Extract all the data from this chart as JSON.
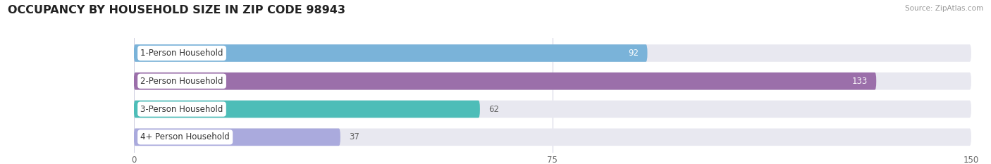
{
  "categories": [
    "1-Person Household",
    "2-Person Household",
    "3-Person Household",
    "4+ Person Household"
  ],
  "values": [
    92,
    133,
    62,
    37
  ],
  "bar_colors": [
    "#7ab3d9",
    "#9b6faa",
    "#4dbdb8",
    "#aaaadd"
  ],
  "bar_bg_color": "#e8e8f0",
  "fig_bg_color": "#ffffff",
  "title": "OCCUPANCY BY HOUSEHOLD SIZE IN ZIP CODE 98943",
  "source": "Source: ZipAtlas.com",
  "xlim": [
    0,
    150
  ],
  "xticks": [
    0,
    75,
    150
  ],
  "title_fontsize": 11.5,
  "label_fontsize": 8.5,
  "value_fontsize": 8.5,
  "inside_threshold": 90,
  "bar_height": 0.62
}
